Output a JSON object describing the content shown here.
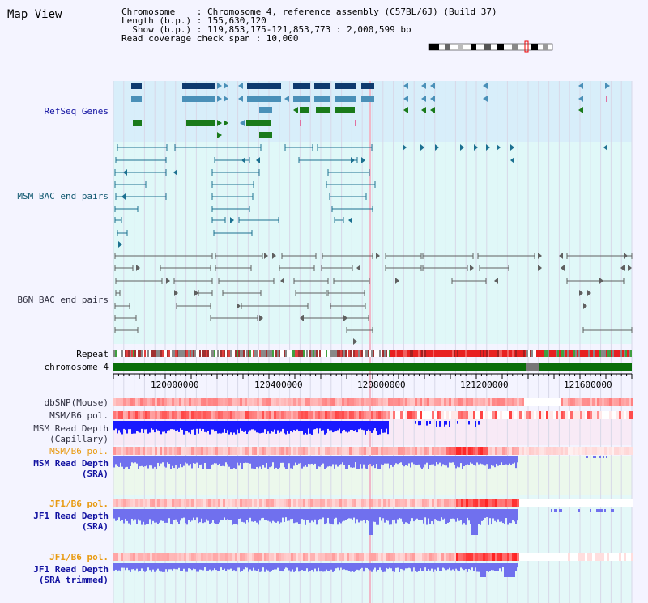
{
  "header": {
    "title": "Map View",
    "info_lines": [
      "Chromosome    : Chromosome 4, reference assembly (C57BL/6J) (Build 37)",
      "Length (b.p.) : 155,630,120",
      "  Show (b.p.) : 119,853,175-121,853,773 : 2,000,599 bp",
      "Read coverage check span : 10,000"
    ]
  },
  "tracks": {
    "refseq": "RefSeq Genes",
    "msm_bac": "MSM BAC end pairs",
    "b6n_bac": "B6N BAC end pairs",
    "repeat": "Repeat",
    "chromosome": "chromosome 4",
    "dbsnp": "dbSNP(Mouse)",
    "msm_b6_pol1": "MSM/B6 pol.",
    "msm_read_depth_cap_1": "MSM Read Depth",
    "msm_read_depth_cap_2": "(Capillary)",
    "msm_b6_pol2": "MSM/B6 pol.",
    "msm_read_depth_sra_1": "MSM Read Depth",
    "msm_read_depth_sra_2": "(SRA)",
    "jf1_b6_pol1": "JF1/B6 pol.",
    "jf1_read_depth_sra_1": "JF1 Read Depth",
    "jf1_read_depth_sra_2": "(SRA)",
    "jf1_b6_pol2": "JF1/B6 pol.",
    "jf1_read_depth_trim_1": "JF1 Read Depth",
    "jf1_read_depth_trim_2": "(SRA trimmed)"
  },
  "ruler": {
    "labels": [
      "120000000",
      "120400000",
      "120800000",
      "121200000",
      "121600000"
    ]
  },
  "colors": {
    "refseq_bg": "#d8eefa",
    "bac_bg": "#e0f8f8",
    "gene_dark": "#0d3a6e",
    "gene_mid": "#4a90b8",
    "gene_green": "#1a7a1a",
    "msm_line": "#1b7090",
    "b6n_line": "#606060",
    "chromosome_green": "#0a6e0a",
    "depth_blue": "#1a1aff",
    "depth_light_blue": "#7070ee",
    "snp_red": "#ff3030"
  }
}
